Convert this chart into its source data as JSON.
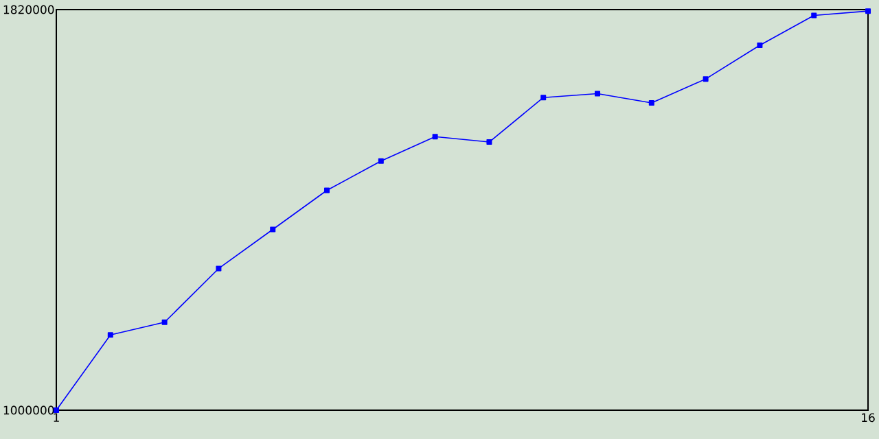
{
  "chart_data": {
    "type": "line",
    "x": [
      1,
      2,
      3,
      4,
      5,
      6,
      7,
      8,
      9,
      10,
      11,
      12,
      13,
      14,
      15,
      16
    ],
    "values": [
      1000000,
      1154000,
      1180000,
      1290000,
      1370000,
      1450000,
      1510000,
      1560000,
      1549000,
      1640000,
      1648000,
      1629000,
      1678000,
      1747000,
      1808000,
      1817000
    ],
    "color": "#0000ff",
    "marker": "square",
    "xlim": [
      1,
      16
    ],
    "ylim": [
      1000000,
      1820000
    ],
    "xticks": [
      1,
      16
    ],
    "yticks": [
      1000000,
      1820000
    ]
  }
}
